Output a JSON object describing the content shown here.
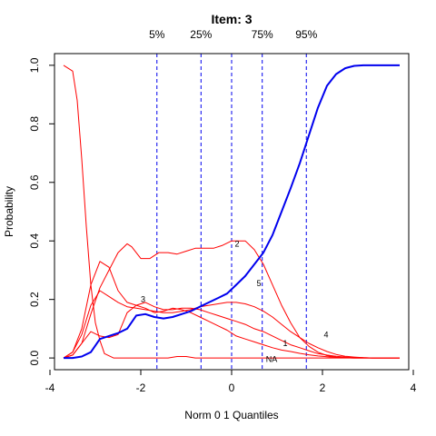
{
  "chart_data": {
    "type": "line",
    "title": "Item:  3",
    "xlabel": "Norm 0 1 Quantiles",
    "ylabel": "Probability",
    "xlim": [
      -3.9,
      3.9
    ],
    "ylim": [
      -0.04,
      1.04
    ],
    "xticks": [
      -4,
      -2,
      0,
      2,
      4
    ],
    "xtick_labels": [
      "-4",
      "-2",
      "0",
      "2",
      "4"
    ],
    "yticks": [
      0.0,
      0.2,
      0.4,
      0.6,
      0.8,
      1.0
    ],
    "ytick_labels": [
      "0.0",
      "0.2",
      "0.4",
      "0.6",
      "0.8",
      "1.0"
    ],
    "grid": false,
    "quantile_lines": [
      {
        "label": "5%",
        "x": -1.645
      },
      {
        "label": "25%",
        "x": -0.674
      },
      {
        "label": "",
        "x": 0.0
      },
      {
        "label": "75%",
        "x": 0.674
      },
      {
        "label": "95%",
        "x": 1.645
      }
    ],
    "colors": {
      "options": "#ff0000",
      "correct": "#0000ee",
      "quantiles": "#0000ee"
    },
    "series": [
      {
        "name": "3",
        "role": "correct",
        "x": [
          -3.7,
          -3.5,
          -3.3,
          -3.1,
          -2.9,
          -2.7,
          -2.5,
          -2.3,
          -2.1,
          -1.9,
          -1.7,
          -1.5,
          -1.3,
          -1.1,
          -0.9,
          -0.7,
          -0.5,
          -0.3,
          -0.1,
          0.1,
          0.3,
          0.5,
          0.7,
          0.9,
          1.1,
          1.3,
          1.5,
          1.7,
          1.9,
          2.1,
          2.3,
          2.5,
          2.7,
          2.9,
          3.1,
          3.3,
          3.5,
          3.7
        ],
        "values": [
          0.0,
          0.0,
          0.005,
          0.02,
          0.065,
          0.075,
          0.085,
          0.1,
          0.145,
          0.15,
          0.14,
          0.135,
          0.14,
          0.15,
          0.16,
          0.175,
          0.19,
          0.205,
          0.22,
          0.25,
          0.28,
          0.32,
          0.36,
          0.42,
          0.5,
          0.58,
          0.665,
          0.76,
          0.855,
          0.93,
          0.97,
          0.99,
          0.998,
          1.0,
          1.0,
          1.0,
          1.0,
          1.0
        ]
      },
      {
        "name": "NA",
        "role": "option",
        "x": [
          -3.7,
          -3.5,
          -3.4,
          -3.3,
          -3.2,
          -3.1,
          -3.0,
          -2.9,
          -2.8,
          -2.6,
          -2.4,
          -2.2,
          -2.0,
          -1.8,
          -1.6,
          -1.4,
          -1.2,
          -1.0,
          -0.8,
          -0.5,
          0.0,
          0.5,
          1.0,
          1.5,
          2.0,
          2.5,
          3.0,
          3.5,
          3.7
        ],
        "values": [
          1.0,
          0.98,
          0.88,
          0.68,
          0.45,
          0.25,
          0.12,
          0.06,
          0.015,
          0.0,
          0.0,
          0.0,
          0.0,
          0.0,
          0.0,
          0.0,
          0.005,
          0.005,
          0.0,
          0.0,
          0.0,
          0.0,
          0.0,
          0.0,
          0.0,
          0.0,
          0.0,
          0.0,
          0.0
        ]
      },
      {
        "name": "2",
        "role": "option",
        "x": [
          -3.7,
          -3.5,
          -3.3,
          -3.1,
          -2.9,
          -2.7,
          -2.5,
          -2.3,
          -2.2,
          -2.0,
          -1.8,
          -1.6,
          -1.4,
          -1.2,
          -1.0,
          -0.8,
          -0.6,
          -0.4,
          -0.2,
          0.0,
          0.3,
          0.5,
          0.7,
          0.9,
          1.1,
          1.3,
          1.5,
          1.7,
          1.9,
          2.1,
          2.3,
          2.5,
          2.7,
          2.9,
          3.1,
          3.3,
          3.5,
          3.7
        ],
        "values": [
          0.0,
          0.01,
          0.05,
          0.15,
          0.24,
          0.3,
          0.36,
          0.39,
          0.38,
          0.34,
          0.34,
          0.36,
          0.36,
          0.355,
          0.365,
          0.375,
          0.375,
          0.375,
          0.385,
          0.4,
          0.4,
          0.37,
          0.32,
          0.25,
          0.18,
          0.12,
          0.07,
          0.04,
          0.02,
          0.008,
          0.003,
          0.001,
          0.0,
          0.0,
          0.0,
          0.0,
          0.0,
          0.0
        ]
      },
      {
        "name": "5",
        "role": "option",
        "x": [
          -3.7,
          -3.5,
          -3.3,
          -3.1,
          -2.9,
          -2.7,
          -2.5,
          -2.3,
          -2.1,
          -1.9,
          -1.7,
          -1.5,
          -1.3,
          -1.1,
          -0.9,
          -0.7,
          -0.5,
          -0.3,
          -0.1,
          0.1,
          0.3,
          0.5,
          0.7,
          0.9,
          1.1,
          1.3,
          1.5,
          1.7,
          1.9,
          2.1,
          2.3,
          2.5,
          2.7,
          2.9,
          3.1,
          3.3,
          3.5,
          3.7
        ],
        "values": [
          0.0,
          0.02,
          0.08,
          0.18,
          0.23,
          0.21,
          0.19,
          0.175,
          0.17,
          0.165,
          0.16,
          0.155,
          0.155,
          0.16,
          0.165,
          0.175,
          0.18,
          0.185,
          0.19,
          0.19,
          0.185,
          0.175,
          0.16,
          0.14,
          0.115,
          0.09,
          0.07,
          0.05,
          0.035,
          0.022,
          0.012,
          0.006,
          0.003,
          0.001,
          0.0,
          0.0,
          0.0,
          0.0
        ]
      },
      {
        "name": "1",
        "role": "option",
        "x": [
          -3.7,
          -3.5,
          -3.3,
          -3.1,
          -2.9,
          -2.7,
          -2.5,
          -2.3,
          -2.1,
          -1.9,
          -1.7,
          -1.5,
          -1.3,
          -1.1,
          -0.9,
          -0.7,
          -0.5,
          -0.3,
          -0.1,
          0.1,
          0.3,
          0.5,
          0.7,
          0.9,
          1.1,
          1.3,
          1.5,
          1.7,
          1.9,
          2.1,
          2.3,
          2.5,
          2.7,
          2.9,
          3.1,
          3.3,
          3.5,
          3.7
        ],
        "values": [
          0.0,
          0.02,
          0.1,
          0.25,
          0.33,
          0.31,
          0.23,
          0.19,
          0.18,
          0.17,
          0.155,
          0.16,
          0.17,
          0.165,
          0.155,
          0.14,
          0.125,
          0.11,
          0.095,
          0.075,
          0.065,
          0.055,
          0.045,
          0.035,
          0.027,
          0.022,
          0.016,
          0.011,
          0.007,
          0.004,
          0.002,
          0.001,
          0.0,
          0.0,
          0.0,
          0.0,
          0.0,
          0.0
        ]
      },
      {
        "name": "4",
        "role": "option",
        "x": [
          -3.7,
          -3.5,
          -3.3,
          -3.1,
          -2.9,
          -2.7,
          -2.5,
          -2.3,
          -2.1,
          -1.9,
          -1.7,
          -1.5,
          -1.3,
          -1.1,
          -0.9,
          -0.7,
          -0.5,
          -0.3,
          -0.1,
          0.1,
          0.3,
          0.5,
          0.7,
          0.9,
          1.1,
          1.3,
          1.5,
          1.7,
          1.9,
          2.1,
          2.3,
          2.5,
          2.7,
          2.9,
          3.1,
          3.3,
          3.5,
          3.7
        ],
        "values": [
          0.0,
          0.01,
          0.05,
          0.09,
          0.075,
          0.07,
          0.08,
          0.155,
          0.18,
          0.19,
          0.175,
          0.165,
          0.165,
          0.17,
          0.17,
          0.165,
          0.155,
          0.145,
          0.135,
          0.125,
          0.115,
          0.1,
          0.09,
          0.075,
          0.06,
          0.045,
          0.035,
          0.025,
          0.015,
          0.01,
          0.006,
          0.003,
          0.002,
          0.001,
          0.0,
          0.0,
          0.0,
          0.0
        ]
      }
    ],
    "curve_labels": [
      {
        "text": "3",
        "x": -1.95,
        "y": 0.2
      },
      {
        "text": "2",
        "x": 0.12,
        "y": 0.39
      },
      {
        "text": "5",
        "x": 0.6,
        "y": 0.255
      },
      {
        "text": "1",
        "x": 1.18,
        "y": 0.05
      },
      {
        "text": "4",
        "x": 2.08,
        "y": 0.08
      },
      {
        "text": "NA",
        "x": 0.88,
        "y": -0.005
      }
    ]
  }
}
